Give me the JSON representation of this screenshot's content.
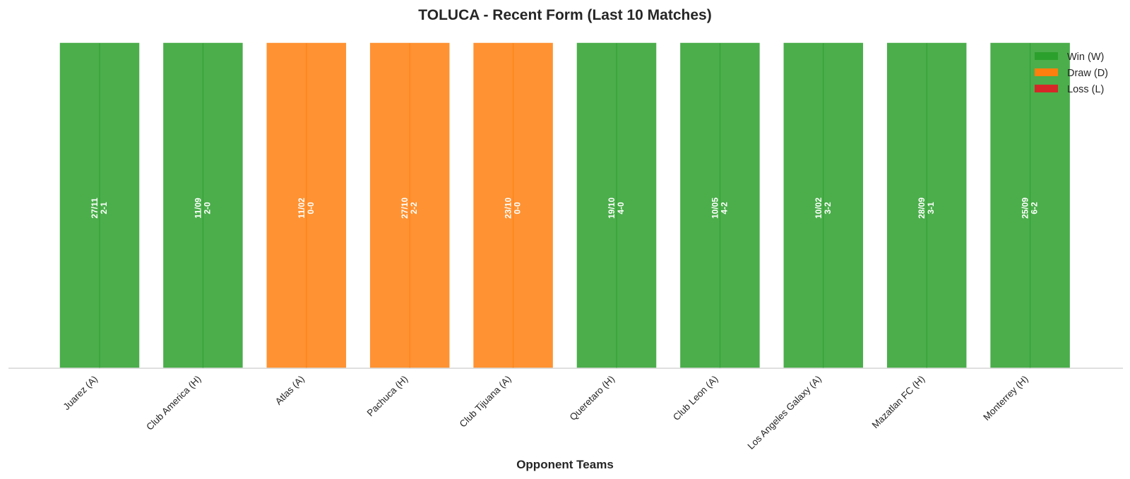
{
  "chart_data": {
    "type": "bar",
    "title": "TOLUCA - Recent Form (Last 10 Matches)",
    "xlabel": "Opponent Teams",
    "ylabel": "",
    "ylim": [
      0,
      1.05
    ],
    "grid": false,
    "legend_placement": "top-right",
    "categories": [
      "Juarez (A)",
      "Club America (H)",
      "Atlas (A)",
      "Pachuca (H)",
      "Club Tijuana (A)",
      "Queretaro (H)",
      "Club Leon (A)",
      "Los Angeles Galaxy (A)",
      "Mazatlan FC (H)",
      "Monterrey (H)"
    ],
    "values": [
      1,
      1,
      1,
      1,
      1,
      1,
      1,
      1,
      1,
      1
    ],
    "results": [
      "W",
      "W",
      "D",
      "D",
      "D",
      "W",
      "W",
      "W",
      "W",
      "W"
    ],
    "dates": [
      "27/11",
      "11/09",
      "11/02",
      "27/10",
      "23/10",
      "19/10",
      "10/05",
      "10/02",
      "28/09",
      "25/09"
    ],
    "scores": [
      "2-1",
      "2-0",
      "0-0",
      "2-2",
      "0-0",
      "4-0",
      "4-2",
      "3-2",
      "3-1",
      "6-2"
    ],
    "legend": [
      {
        "key": "W",
        "label": "Win (W)",
        "color": "#2ca02c"
      },
      {
        "key": "D",
        "label": "Draw (D)",
        "color": "#ff7f0e"
      },
      {
        "key": "L",
        "label": "Loss (L)",
        "color": "#d62728"
      }
    ]
  }
}
